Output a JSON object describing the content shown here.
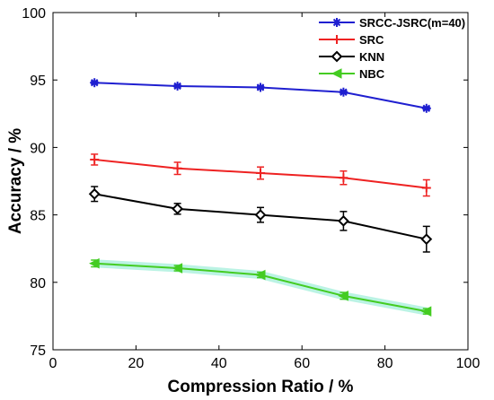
{
  "chart_data": {
    "type": "line",
    "title": "",
    "xlabel": "Compression Ratio / %",
    "ylabel": "Accuracy / %",
    "xlim": [
      0,
      100
    ],
    "ylim": [
      75,
      100
    ],
    "xticks": [
      0,
      20,
      40,
      60,
      80,
      100
    ],
    "yticks": [
      75,
      80,
      85,
      90,
      95,
      100
    ],
    "xtick_labels": [
      "0",
      "20",
      "40",
      "60",
      "80",
      "100"
    ],
    "ytick_labels": [
      "75",
      "80",
      "85",
      "90",
      "95",
      "100"
    ],
    "grid": false,
    "legend_position": "top-right",
    "x": [
      10,
      30,
      50,
      70,
      90
    ],
    "series": [
      {
        "name": "SRCC-JSRC(m=40)",
        "color": "#1f1fd0",
        "marker": "asterisk",
        "values": [
          94.8,
          94.55,
          94.45,
          94.1,
          92.9
        ],
        "error": [
          0.1,
          0.1,
          0.1,
          0.1,
          0.1
        ]
      },
      {
        "name": "SRC",
        "color": "#ee2222",
        "marker": "plus",
        "values": [
          89.1,
          88.45,
          88.1,
          87.75,
          87.0
        ],
        "error": [
          0.4,
          0.45,
          0.45,
          0.5,
          0.6
        ]
      },
      {
        "name": "KNN",
        "color": "#000000",
        "marker": "diamond",
        "values": [
          86.55,
          85.45,
          85.0,
          84.55,
          83.2
        ],
        "error": [
          0.55,
          0.4,
          0.55,
          0.7,
          0.95
        ]
      },
      {
        "name": "NBC",
        "color": "#44cc22",
        "marker": "triangle-left",
        "values": [
          81.4,
          81.05,
          80.55,
          79.0,
          77.85
        ],
        "error": [
          0.25,
          0.2,
          0.2,
          0.25,
          0.2
        ]
      }
    ]
  }
}
